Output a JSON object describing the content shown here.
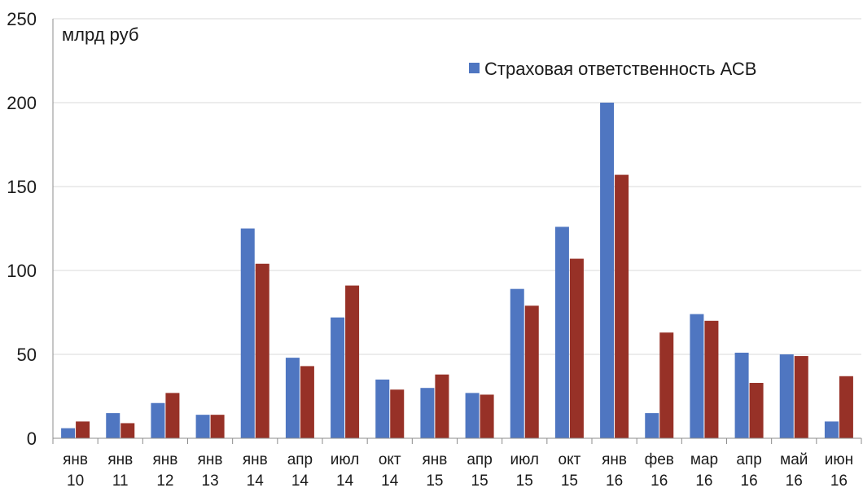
{
  "chart_data": {
    "type": "bar",
    "unit_label": "млрд руб",
    "ylim": [
      0,
      250
    ],
    "yticks": [
      0,
      50,
      100,
      150,
      200,
      250
    ],
    "grid": true,
    "legend_position": "top-right",
    "categories": [
      [
        "янв",
        "10"
      ],
      [
        "янв",
        "11"
      ],
      [
        "янв",
        "12"
      ],
      [
        "янв",
        "13"
      ],
      [
        "янв",
        "14"
      ],
      [
        "апр",
        "14"
      ],
      [
        "июл",
        "14"
      ],
      [
        "окт",
        "14"
      ],
      [
        "янв",
        "15"
      ],
      [
        "апр",
        "15"
      ],
      [
        "июл",
        "15"
      ],
      [
        "окт",
        "15"
      ],
      [
        "янв",
        "16"
      ],
      [
        "фев",
        "16"
      ],
      [
        "мар",
        "16"
      ],
      [
        "апр",
        "16"
      ],
      [
        "май",
        "16"
      ],
      [
        "июн",
        "16"
      ]
    ],
    "series": [
      {
        "name": "Страховая ответственность АСВ",
        "color": "#4f76c1",
        "values": [
          6,
          15,
          21,
          14,
          125,
          48,
          72,
          35,
          30,
          27,
          89,
          126,
          200,
          15,
          74,
          51,
          50,
          10
        ]
      },
      {
        "name": "",
        "color": "#973127",
        "values": [
          10,
          9,
          27,
          14,
          104,
          43,
          91,
          29,
          38,
          26,
          79,
          107,
          157,
          63,
          70,
          33,
          49,
          37
        ]
      }
    ]
  }
}
